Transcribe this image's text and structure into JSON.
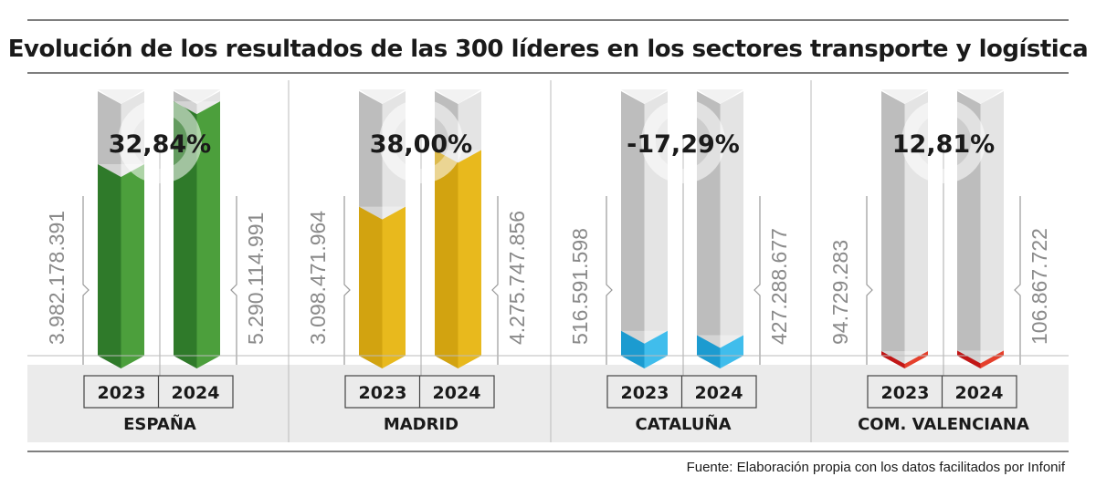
{
  "chart_data": {
    "type": "bar",
    "title": "Evolución de los resultados de las 300 líderes en los sectores transporte y logística",
    "source": "Fuente: Elaboración propia con los datos facilitados por Infonif",
    "categories": [
      "2023",
      "2024"
    ],
    "ylim": [
      0,
      5500000000
    ],
    "grid": false,
    "panels": [
      {
        "region": "ESPAÑA",
        "change": "32,84%",
        "values": [
          3982178391,
          5290114991
        ],
        "labels": [
          "3.982.178.391",
          "5.290.114.991"
        ],
        "color_dark": "#2f7a2a",
        "color_light": "#4c9f3c"
      },
      {
        "region": "MADRID",
        "change": "38,00%",
        "values": [
          3098471964,
          4275747856
        ],
        "labels": [
          "3.098.471.964",
          "4.275.747.856"
        ],
        "color_dark": "#d2a310",
        "color_light": "#e8b91d"
      },
      {
        "region": "CATALUÑA",
        "change": "-17,29%",
        "values": [
          516591598,
          427288677
        ],
        "labels": [
          "516.591.598",
          "427.288.677"
        ],
        "color_dark": "#1c9bd0",
        "color_light": "#40bdec"
      },
      {
        "region": "COM. VALENCIANA",
        "change": "12,81%",
        "values": [
          94729283,
          106867722
        ],
        "labels": [
          "94.729.283",
          "106.867.722"
        ],
        "color_dark": "#c21616",
        "color_light": "#e5402c"
      }
    ]
  }
}
